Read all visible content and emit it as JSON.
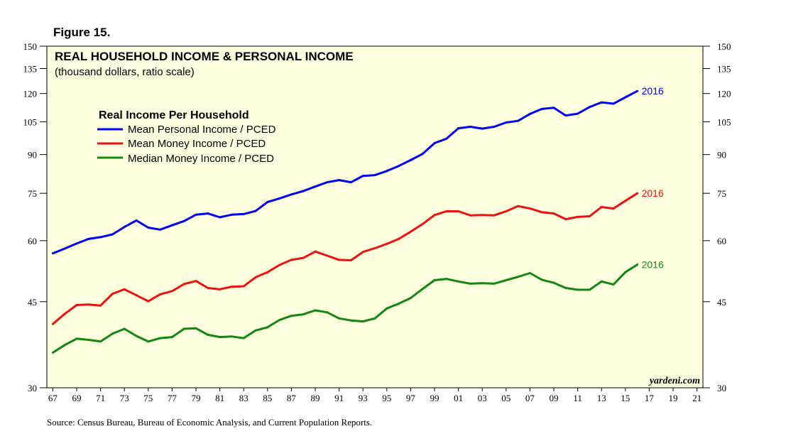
{
  "figure_label": "Figure 15.",
  "source_note": "Source: Census Bureau, Bureau of Economic Analysis, and Current Population Reports.",
  "watermark": "yardeni.com",
  "colors": {
    "panel": "#ffffe0",
    "blue": "#0000ff",
    "red": "#ee1111",
    "green": "#118811"
  },
  "chart_data": {
    "type": "line",
    "title": "REAL HOUSEHOLD INCOME & PERSONAL INCOME",
    "subtitle": "(thousand dollars, ratio scale)",
    "legend_title": "Real Income Per Household",
    "legend_position": "top-left",
    "xlabel": "",
    "ylabel": "",
    "y_scale": "log",
    "ylim": [
      30,
      150
    ],
    "y_ticks": [
      30,
      45,
      60,
      75,
      90,
      105,
      120,
      135,
      150
    ],
    "y_tick_labels": [
      "30",
      "45",
      "60",
      "75",
      "90",
      "105",
      "120",
      "135",
      "150"
    ],
    "xlim": [
      1966.5,
      2021.5
    ],
    "x_ticks": [
      1967,
      1969,
      1971,
      1973,
      1975,
      1977,
      1979,
      1981,
      1983,
      1985,
      1987,
      1989,
      1991,
      1993,
      1995,
      1997,
      1999,
      2001,
      2003,
      2005,
      2007,
      2009,
      2011,
      2013,
      2015,
      2017,
      2019,
      2021
    ],
    "x_tick_labels": [
      "67",
      "69",
      "71",
      "73",
      "75",
      "77",
      "79",
      "81",
      "83",
      "85",
      "87",
      "89",
      "91",
      "93",
      "95",
      "97",
      "99",
      "01",
      "03",
      "05",
      "07",
      "09",
      "11",
      "13",
      "15",
      "17",
      "19",
      "21"
    ],
    "x": [
      1967,
      1968,
      1969,
      1970,
      1971,
      1972,
      1973,
      1974,
      1975,
      1976,
      1977,
      1978,
      1979,
      1980,
      1981,
      1982,
      1983,
      1984,
      1985,
      1986,
      1987,
      1988,
      1989,
      1990,
      1991,
      1992,
      1993,
      1994,
      1995,
      1996,
      1997,
      1998,
      1999,
      2000,
      2001,
      2002,
      2003,
      2004,
      2005,
      2006,
      2007,
      2008,
      2009,
      2010,
      2011,
      2012,
      2013,
      2014,
      2015,
      2016
    ],
    "series": [
      {
        "name": "Mean Personal Income / PCED",
        "color": "#0000ff",
        "end_label": "2016",
        "values": [
          56.5,
          57.8,
          59.2,
          60.5,
          61.0,
          61.8,
          64.0,
          66.0,
          63.8,
          63.2,
          64.5,
          65.8,
          67.8,
          68.2,
          67.0,
          67.8,
          68.0,
          69.0,
          72.0,
          73.2,
          74.6,
          75.8,
          77.4,
          79.0,
          79.8,
          79.0,
          81.4,
          81.7,
          83.3,
          85.3,
          87.7,
          90.3,
          95.0,
          97.0,
          101.9,
          102.6,
          101.7,
          102.6,
          104.7,
          105.5,
          109.0,
          111.6,
          112.2,
          108.2,
          109.1,
          112.6,
          115.1,
          114.4,
          117.9,
          121.4
        ]
      },
      {
        "name": "Mean Money Income / PCED",
        "color": "#ee1111",
        "end_label": "2016",
        "values": [
          40.5,
          42.5,
          44.3,
          44.4,
          44.2,
          46.7,
          47.7,
          46.4,
          45.1,
          46.6,
          47.3,
          48.9,
          49.6,
          48.0,
          47.7,
          48.3,
          48.4,
          50.5,
          51.7,
          53.5,
          54.8,
          55.3,
          57.0,
          55.9,
          54.8,
          54.7,
          56.9,
          57.9,
          59.1,
          60.5,
          62.6,
          64.9,
          67.7,
          68.9,
          68.9,
          67.6,
          67.7,
          67.6,
          68.9,
          70.6,
          69.8,
          68.6,
          68.2,
          66.4,
          67.1,
          67.3,
          70.3,
          69.8,
          72.4,
          75.0
        ]
      },
      {
        "name": "Median Money Income / PCED",
        "color": "#118811",
        "end_label": "2016",
        "values": [
          35.4,
          36.7,
          37.8,
          37.6,
          37.3,
          38.7,
          39.6,
          38.3,
          37.3,
          37.9,
          38.1,
          39.6,
          39.7,
          38.5,
          38.1,
          38.2,
          37.9,
          39.3,
          39.9,
          41.3,
          42.1,
          42.4,
          43.2,
          42.8,
          41.6,
          41.2,
          41.0,
          41.6,
          43.6,
          44.6,
          45.8,
          47.8,
          49.8,
          50.1,
          49.5,
          49.0,
          49.1,
          49.0,
          49.8,
          50.6,
          51.5,
          49.9,
          49.2,
          48.0,
          47.6,
          47.6,
          49.5,
          48.8,
          51.7,
          53.6
        ]
      }
    ]
  }
}
